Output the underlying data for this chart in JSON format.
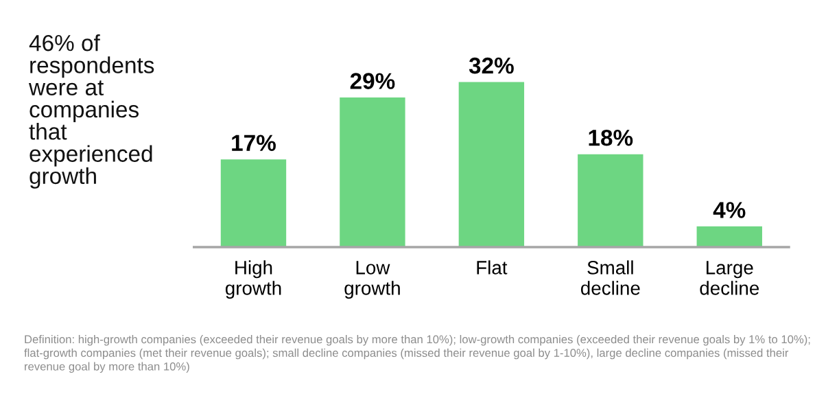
{
  "chart_data": {
    "type": "bar",
    "title": "46% of respondents were at companies that experienced growth",
    "categories": [
      "High growth",
      "Low growth",
      "Flat",
      "Small decline",
      "Large decline"
    ],
    "values": [
      17,
      29,
      32,
      18,
      4
    ],
    "value_labels": [
      "17%",
      "29%",
      "32%",
      "18%",
      "4%"
    ],
    "color": "#6dd682",
    "grid": false,
    "legend": false,
    "annotations": [
      "Definition: high-growth companies (exceeded their revenue goals by more than 10%); low-growth companies (exceeded their revenue goals by 1% to 10%); flat-growth companies (met their revenue goals); small decline companies (missed their revenue goal by 1-10%), large decline companies (missed their revenue goal by more than 10%)"
    ]
  }
}
